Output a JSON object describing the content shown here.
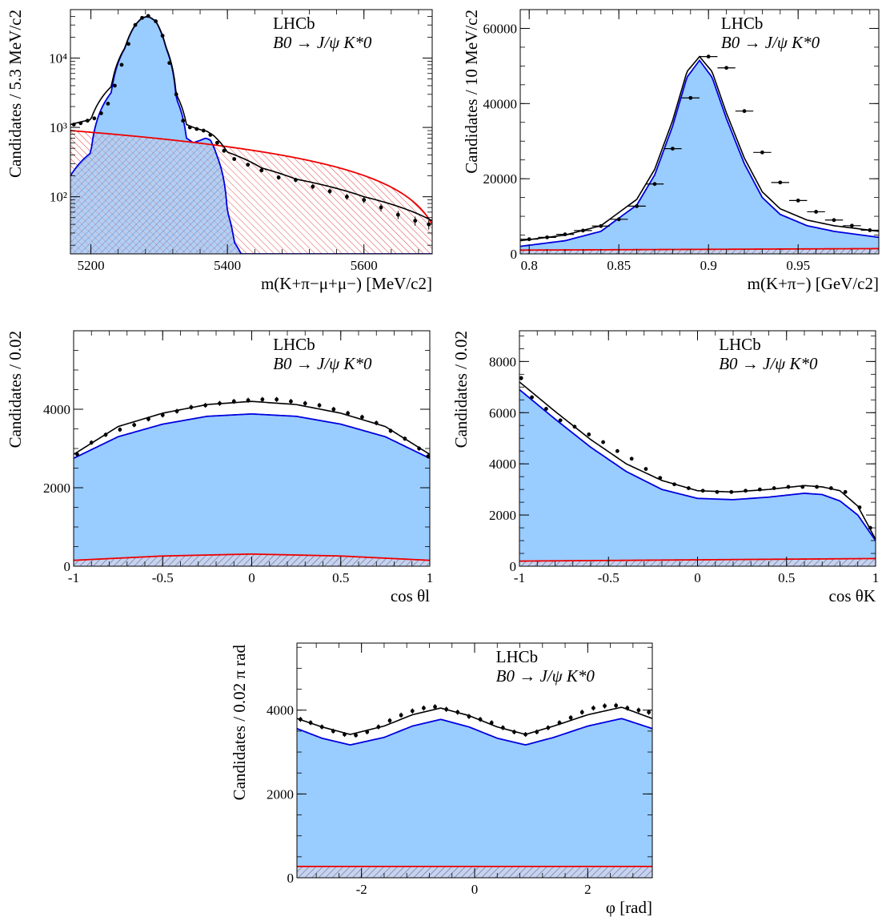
{
  "colors": {
    "signal_fill": "#99CCFF",
    "signal_line": "#0000DD",
    "background_line": "#EE0000",
    "background_hatch_blue": "#5577BB",
    "background_hatch_red": "#DD3333",
    "total_line": "#000000",
    "data": "#000000"
  },
  "chart_data": [
    {
      "id": "mass_b",
      "type": "line",
      "xlabel": "m(K+π−μ+μ−) [MeV/c2]",
      "ylabel": "Candidates / 5.3 MeV/c2",
      "xlim": [
        5170,
        5700
      ],
      "ylim": [
        15,
        50000
      ],
      "log_y": true,
      "x_ticks": [
        5200,
        5400,
        5600
      ],
      "y_ticks": [
        100,
        1000,
        10000
      ],
      "y_tick_labels": [
        "10²",
        "10³",
        "10⁴"
      ],
      "annotation": {
        "experiment": "LHCb",
        "decay": "B0 → J/ψ K*0"
      },
      "signal": {
        "name": "",
        "x": [
          5170,
          5200,
          5230,
          5250,
          5265,
          5275,
          5284,
          5295,
          5310,
          5325,
          5340,
          5350,
          5360,
          5368,
          5375,
          5385,
          5400,
          5410,
          5420,
          5430
        ],
        "y": [
          200,
          430,
          3200,
          14000,
          30000,
          38000,
          40000,
          34000,
          14000,
          2600,
          700,
          600,
          650,
          700,
          660,
          380,
          60,
          22,
          15,
          15
        ]
      },
      "background": {
        "name": "",
        "x": [
          5170,
          5700
        ],
        "y": [
          900,
          40
        ]
      },
      "total": {
        "name": "",
        "x": [
          5170,
          5200,
          5230,
          5250,
          5265,
          5275,
          5284,
          5295,
          5310,
          5325,
          5340,
          5350,
          5360,
          5370,
          5380,
          5400,
          5450,
          5500,
          5600,
          5700
        ],
        "y": [
          1100,
          1300,
          3900,
          14200,
          30200,
          38100,
          40100,
          34100,
          14300,
          3000,
          1100,
          1000,
          930,
          880,
          760,
          440,
          260,
          180,
          100,
          45
        ]
      },
      "data_points": {
        "x": [
          5175,
          5185,
          5195,
          5205,
          5215,
          5225,
          5235,
          5245,
          5255,
          5265,
          5275,
          5284,
          5295,
          5305,
          5315,
          5325,
          5335,
          5345,
          5355,
          5365,
          5375,
          5385,
          5395,
          5410,
          5430,
          5450,
          5475,
          5500,
          5525,
          5550,
          5575,
          5600,
          5625,
          5650,
          5675,
          5695
        ],
        "y": [
          1100,
          1150,
          1250,
          1350,
          1600,
          2200,
          4000,
          8000,
          16000,
          30000,
          38000,
          40500,
          34000,
          21000,
          8500,
          3000,
          1250,
          1000,
          950,
          900,
          780,
          600,
          460,
          350,
          290,
          240,
          190,
          175,
          140,
          120,
          100,
          90,
          70,
          55,
          45,
          40
        ]
      }
    },
    {
      "id": "mass_kpi",
      "type": "line",
      "xlabel": "m(K+π−) [GeV/c2]",
      "ylabel": "Candidates / 10 MeV/c2",
      "xlim": [
        0.795,
        0.995
      ],
      "ylim": [
        0,
        65000
      ],
      "x_ticks": [
        0.8,
        0.85,
        0.9,
        0.95
      ],
      "x_tick_labels": [
        "0.8",
        "0.85",
        "0.9",
        "0.95"
      ],
      "y_ticks": [
        0,
        20000,
        40000,
        60000
      ],
      "annotation": {
        "experiment": "LHCb",
        "decay": "B0 → J/ψ K*0"
      },
      "signal": {
        "name": "",
        "x": [
          0.795,
          0.82,
          0.84,
          0.86,
          0.87,
          0.88,
          0.888,
          0.895,
          0.902,
          0.91,
          0.92,
          0.93,
          0.94,
          0.955,
          0.97,
          0.995
        ],
        "y": [
          2000,
          3500,
          6000,
          13000,
          21000,
          34000,
          47000,
          51500,
          47000,
          36000,
          24000,
          15000,
          10500,
          7500,
          6000,
          4400
        ]
      },
      "background": {
        "name": "",
        "x": [
          0.795,
          0.995
        ],
        "y": [
          1000,
          1400
        ]
      },
      "total": {
        "name": "",
        "x": [
          0.795,
          0.82,
          0.84,
          0.86,
          0.87,
          0.88,
          0.888,
          0.895,
          0.902,
          0.91,
          0.92,
          0.93,
          0.94,
          0.955,
          0.97,
          0.995
        ],
        "y": [
          3500,
          5000,
          7500,
          14500,
          22500,
          35500,
          48500,
          52500,
          48500,
          37500,
          25500,
          16500,
          12000,
          9000,
          7500,
          6000
        ]
      },
      "data_points": {
        "x": [
          0.8,
          0.81,
          0.82,
          0.83,
          0.84,
          0.85,
          0.86,
          0.87,
          0.88,
          0.89,
          0.9,
          0.91,
          0.92,
          0.93,
          0.94,
          0.95,
          0.96,
          0.97,
          0.98,
          0.99
        ],
        "y": [
          3900,
          4400,
          5200,
          6200,
          7400,
          9200,
          12700,
          18600,
          28000,
          41500,
          52500,
          49500,
          38000,
          27000,
          19000,
          14200,
          11200,
          9000,
          7500,
          6300
        ]
      }
    },
    {
      "id": "cos_theta_l",
      "type": "line",
      "xlabel": "cos θl",
      "ylabel": "Candidates / 0.02",
      "xlim": [
        -1,
        1
      ],
      "ylim": [
        0,
        6000
      ],
      "x_ticks": [
        -1,
        -0.5,
        0,
        0.5,
        1
      ],
      "x_tick_labels": [
        "-1",
        "-0.5",
        "0",
        "0.5",
        "1"
      ],
      "y_ticks": [
        0,
        2000,
        4000
      ],
      "annotation": {
        "experiment": "LHCb",
        "decay": "B0 → J/ψ K*0"
      },
      "signal": {
        "name": "",
        "x": [
          -1,
          -0.75,
          -0.5,
          -0.25,
          0,
          0.25,
          0.5,
          0.75,
          1
        ],
        "y": [
          2750,
          3300,
          3620,
          3820,
          3880,
          3820,
          3620,
          3300,
          2750
        ]
      },
      "background": {
        "name": "",
        "x": [
          -1,
          -0.5,
          0,
          0.5,
          1
        ],
        "y": [
          150,
          260,
          310,
          260,
          150
        ]
      },
      "total": {
        "name": "",
        "x": [
          -1,
          -0.75,
          -0.5,
          -0.25,
          0,
          0.25,
          0.5,
          0.75,
          1
        ],
        "y": [
          2850,
          3560,
          3900,
          4120,
          4200,
          4120,
          3900,
          3560,
          2850
        ]
      },
      "data_points": {
        "x": [
          -0.98,
          -0.9,
          -0.82,
          -0.74,
          -0.66,
          -0.58,
          -0.5,
          -0.42,
          -0.34,
          -0.26,
          -0.18,
          -0.1,
          -0.02,
          0.06,
          0.14,
          0.22,
          0.3,
          0.38,
          0.46,
          0.54,
          0.62,
          0.7,
          0.78,
          0.86,
          0.94,
          0.99
        ],
        "y": [
          2850,
          3150,
          3350,
          3480,
          3600,
          3750,
          3850,
          3950,
          4050,
          4100,
          4150,
          4200,
          4230,
          4250,
          4250,
          4200,
          4150,
          4100,
          4000,
          3900,
          3800,
          3650,
          3450,
          3250,
          3000,
          2800
        ]
      }
    },
    {
      "id": "cos_theta_k",
      "type": "line",
      "xlabel": "cos θK",
      "ylabel": "Candidates / 0.02",
      "xlim": [
        -1,
        1
      ],
      "ylim": [
        0,
        9200
      ],
      "x_ticks": [
        -1,
        -0.5,
        0,
        0.5,
        1
      ],
      "x_tick_labels": [
        "-1",
        "-0.5",
        "0",
        "0.5",
        "1"
      ],
      "y_ticks": [
        0,
        2000,
        4000,
        6000,
        8000
      ],
      "annotation": {
        "experiment": "LHCb",
        "decay": "B0 → J/ψ K*0"
      },
      "signal": {
        "name": "",
        "x": [
          -1,
          -0.8,
          -0.6,
          -0.4,
          -0.2,
          0,
          0.2,
          0.4,
          0.6,
          0.7,
          0.8,
          0.9,
          1
        ],
        "y": [
          6900,
          5750,
          4650,
          3700,
          3000,
          2650,
          2600,
          2700,
          2850,
          2800,
          2550,
          2000,
          1000
        ]
      },
      "background": {
        "name": "",
        "x": [
          -1,
          1
        ],
        "y": [
          200,
          300
        ]
      },
      "total": {
        "name": "",
        "x": [
          -1,
          -0.8,
          -0.6,
          -0.4,
          -0.2,
          0,
          0.2,
          0.4,
          0.6,
          0.7,
          0.8,
          0.9,
          1
        ],
        "y": [
          7200,
          6050,
          4950,
          4000,
          3350,
          2950,
          2900,
          3000,
          3150,
          3100,
          2950,
          2350,
          1050
        ]
      },
      "data_points": {
        "x": [
          -0.99,
          -0.93,
          -0.85,
          -0.77,
          -0.69,
          -0.61,
          -0.53,
          -0.45,
          -0.37,
          -0.29,
          -0.21,
          -0.13,
          -0.05,
          0.03,
          0.11,
          0.19,
          0.27,
          0.35,
          0.43,
          0.51,
          0.59,
          0.67,
          0.75,
          0.83,
          0.91,
          0.97
        ],
        "y": [
          7350,
          6600,
          6150,
          5700,
          5450,
          5150,
          4850,
          4500,
          4200,
          3800,
          3450,
          3200,
          3050,
          2950,
          2900,
          2900,
          2950,
          3000,
          3050,
          3100,
          3100,
          3100,
          3050,
          2900,
          2300,
          1500
        ]
      }
    },
    {
      "id": "phi",
      "type": "line",
      "xlabel": "φ [rad]",
      "ylabel": "Candidates / 0.02 π rad",
      "xlim": [
        -3.1416,
        3.1416
      ],
      "ylim": [
        0,
        5600
      ],
      "x_ticks": [
        -2,
        0,
        2
      ],
      "x_tick_labels": [
        "-2",
        "0",
        "2"
      ],
      "y_ticks": [
        0,
        2000,
        4000
      ],
      "annotation": {
        "experiment": "LHCb",
        "decay": "B0 → J/ψ K*0"
      },
      "signal": {
        "name": "",
        "x": [
          -3.1416,
          -2.7,
          -2.2,
          -1.6,
          -1.1,
          -0.6,
          -0.1,
          0.4,
          0.9,
          1.4,
          2.0,
          2.6,
          3.1416
        ],
        "y": [
          3560,
          3330,
          3170,
          3350,
          3620,
          3780,
          3600,
          3330,
          3170,
          3350,
          3620,
          3800,
          3560
        ]
      },
      "background": {
        "name": "",
        "x": [
          -3.1416,
          3.1416
        ],
        "y": [
          270,
          270
        ]
      },
      "total": {
        "name": "",
        "x": [
          -3.1416,
          -2.7,
          -2.2,
          -1.6,
          -1.1,
          -0.6,
          -0.1,
          0.4,
          0.9,
          1.4,
          2.0,
          2.6,
          3.1416
        ],
        "y": [
          3800,
          3600,
          3420,
          3620,
          3890,
          4050,
          3870,
          3600,
          3420,
          3620,
          3890,
          4070,
          3800
        ]
      },
      "data_points": {
        "x": [
          -3.08,
          -2.9,
          -2.7,
          -2.5,
          -2.3,
          -2.1,
          -1.9,
          -1.7,
          -1.5,
          -1.3,
          -1.1,
          -0.9,
          -0.7,
          -0.5,
          -0.3,
          -0.1,
          0.1,
          0.3,
          0.5,
          0.7,
          0.9,
          1.1,
          1.3,
          1.5,
          1.7,
          1.9,
          2.1,
          2.3,
          2.5,
          2.7,
          2.9,
          3.08
        ],
        "y": [
          3780,
          3700,
          3600,
          3500,
          3420,
          3400,
          3480,
          3600,
          3750,
          3880,
          3980,
          4050,
          4080,
          4020,
          3950,
          3850,
          3780,
          3700,
          3580,
          3480,
          3420,
          3480,
          3580,
          3700,
          3820,
          3950,
          4050,
          4100,
          4110,
          4050,
          4000,
          3950
        ]
      }
    }
  ]
}
